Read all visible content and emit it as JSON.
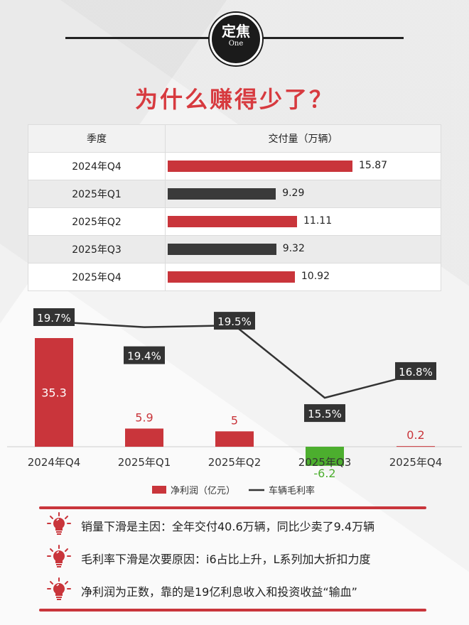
{
  "logo": {
    "line1": "定焦",
    "line2": "One"
  },
  "title": "为什么赚得少了？",
  "table": {
    "headers": {
      "quarter": "季度",
      "deliveries": "交付量（万辆）"
    },
    "rows": [
      {
        "quarter": "2024年Q4",
        "value": "15.87",
        "num": 15.87,
        "color": "#c9353b"
      },
      {
        "quarter": "2025年Q1",
        "value": "9.29",
        "num": 9.29,
        "color": "#3a3a3a"
      },
      {
        "quarter": "2025年Q2",
        "value": "11.11",
        "num": 11.11,
        "color": "#c9353b"
      },
      {
        "quarter": "2025年Q3",
        "value": "9.32",
        "num": 9.32,
        "color": "#3a3a3a"
      },
      {
        "quarter": "2025年Q4",
        "value": "10.92",
        "num": 10.92,
        "color": "#c9353b"
      }
    ]
  },
  "chart_data": {
    "type": "bar",
    "categories": [
      "2024年Q4",
      "2025年Q1",
      "2025年Q2",
      "2025年Q3",
      "2025年Q4"
    ],
    "series": [
      {
        "name": "净利润（亿元）",
        "type": "bar",
        "values": [
          35.3,
          5.9,
          5,
          -6.2,
          0.2
        ],
        "labels": [
          "35.3",
          "5.9",
          "5",
          "-6.2",
          "0.2"
        ],
        "color": "#c9353b",
        "negative_color": "#4cae2e"
      },
      {
        "name": "车辆毛利率",
        "type": "line",
        "values": [
          19.7,
          19.4,
          19.5,
          15.5,
          16.8
        ],
        "labels": [
          "19.7%",
          "19.4%",
          "19.5%",
          "15.5%",
          "16.8%"
        ],
        "color": "#333333"
      }
    ],
    "legend": "bottom"
  },
  "notes": [
    "销量下滑是主因：全年交付40.6万辆，同比少卖了9.4万辆",
    "毛利率下滑是次要原因：i6占比上升，L系列加大折扣力度",
    "净利润为正数，靠的是19亿利息收入和投资收益“输血”"
  ],
  "note_icon": "lightbulb-icon",
  "colors": {
    "accent": "#c9353b",
    "dark": "#3a3a3a",
    "positive_neg": "#4cae2e"
  }
}
